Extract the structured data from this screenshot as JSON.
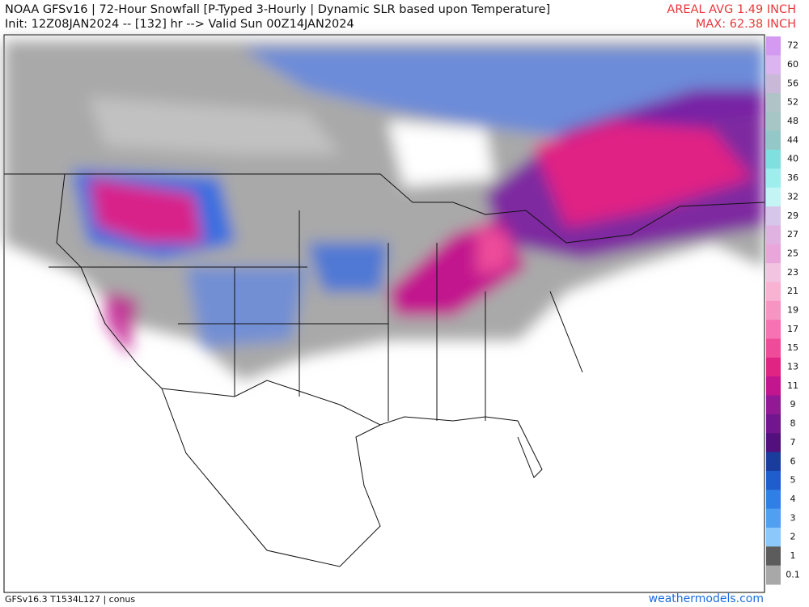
{
  "header": {
    "title": "NOAA GFSv16 | 72-Hour Snowfall [P-Typed 3-Hourly | Dynamic SLR based upon Temperature]",
    "subtitle": "Init: 12Z08JAN2024 -- [132] hr --> Valid Sun 00Z14JAN2024",
    "areal_avg": "AREAL AVG 1.49 INCH",
    "max": "MAX: 62.38 INCH"
  },
  "colorbar": {
    "labels": [
      "72",
      "60",
      "56",
      "52",
      "48",
      "44",
      "40",
      "36",
      "32",
      "29",
      "27",
      "25",
      "23",
      "21",
      "19",
      "17",
      "15",
      "13",
      "11",
      "9",
      "8",
      "7",
      "6",
      "5",
      "4",
      "3",
      "2",
      "1",
      "0.1"
    ],
    "colors": [
      "#d49af2",
      "#dcb4f0",
      "#c9b8d8",
      "#b0c4c8",
      "#a6c6c6",
      "#94c8c8",
      "#7fe0e0",
      "#9eeeee",
      "#c4f4f4",
      "#d6c6ea",
      "#e0b2e2",
      "#e8a6da",
      "#f2c4e2",
      "#f8b2d2",
      "#f894c2",
      "#f672b2",
      "#ee4c9a",
      "#e02484",
      "#c2168e",
      "#921896",
      "#721690",
      "#52107e",
      "#1a3c9e",
      "#1e5ecc",
      "#2f80e6",
      "#50a0f2",
      "#8cc8fa",
      "#5c5c5c",
      "#a8a8a8"
    ]
  },
  "footer": {
    "left": "GFSv16.3 T1534L127 | conus",
    "right": "weathermodels.com"
  }
}
